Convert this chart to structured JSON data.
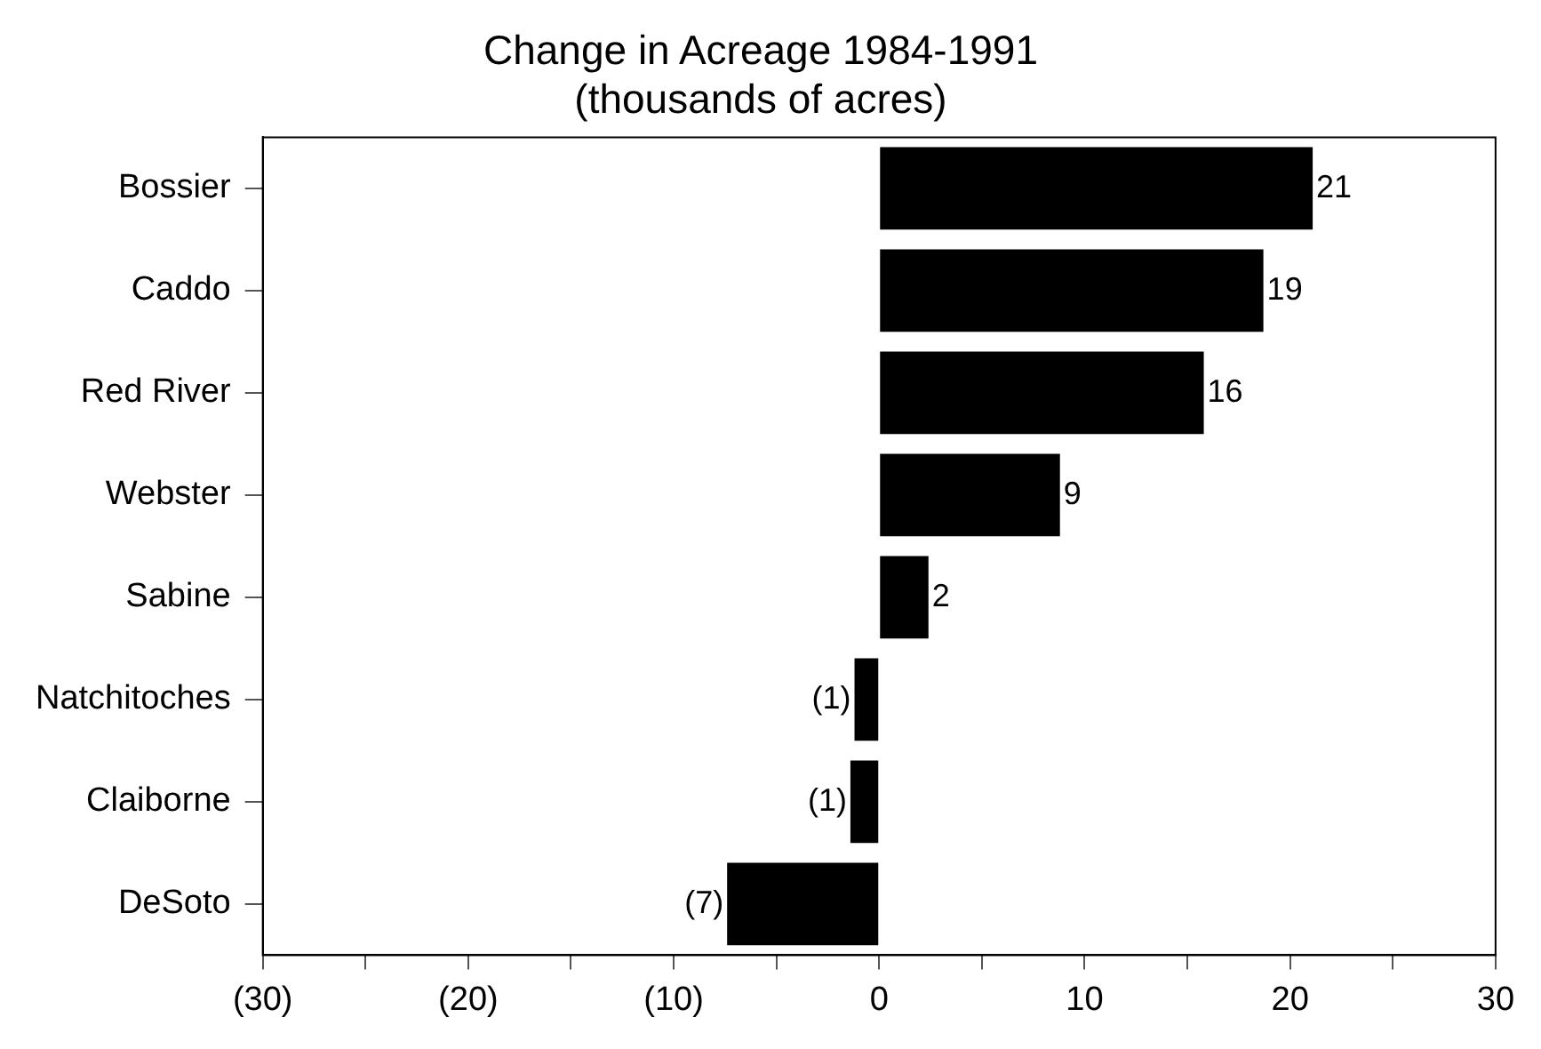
{
  "chart_data": {
    "type": "bar",
    "orientation": "horizontal",
    "title": "Change in Acreage 1984-1991",
    "subtitle": "(thousands of acres)",
    "categories": [
      "Bossier",
      "Caddo",
      "Red River",
      "Webster",
      "Sabine",
      "Natchitoches",
      "Claiborne",
      "DeSoto"
    ],
    "values": [
      21.1,
      18.7,
      15.8,
      8.8,
      2.4,
      -1.2,
      -1.4,
      -7.4
    ],
    "value_labels": [
      "21",
      "19",
      "16",
      "9",
      "2",
      "(1)",
      "(1)",
      "(7)"
    ],
    "color": "#000000",
    "xlim": [
      -30,
      30
    ],
    "xticks": [
      {
        "value": -30,
        "label": "(30)"
      },
      {
        "value": -25,
        "label": null
      },
      {
        "value": -20,
        "label": "(20)"
      },
      {
        "value": -15,
        "label": null
      },
      {
        "value": -10,
        "label": "(10)"
      },
      {
        "value": -5,
        "label": null
      },
      0,
      {
        "value": 5,
        "label": null
      },
      10,
      {
        "value": 15,
        "label": null
      },
      20,
      {
        "value": 25,
        "label": null
      },
      30
    ],
    "grid": false,
    "legend": false
  }
}
